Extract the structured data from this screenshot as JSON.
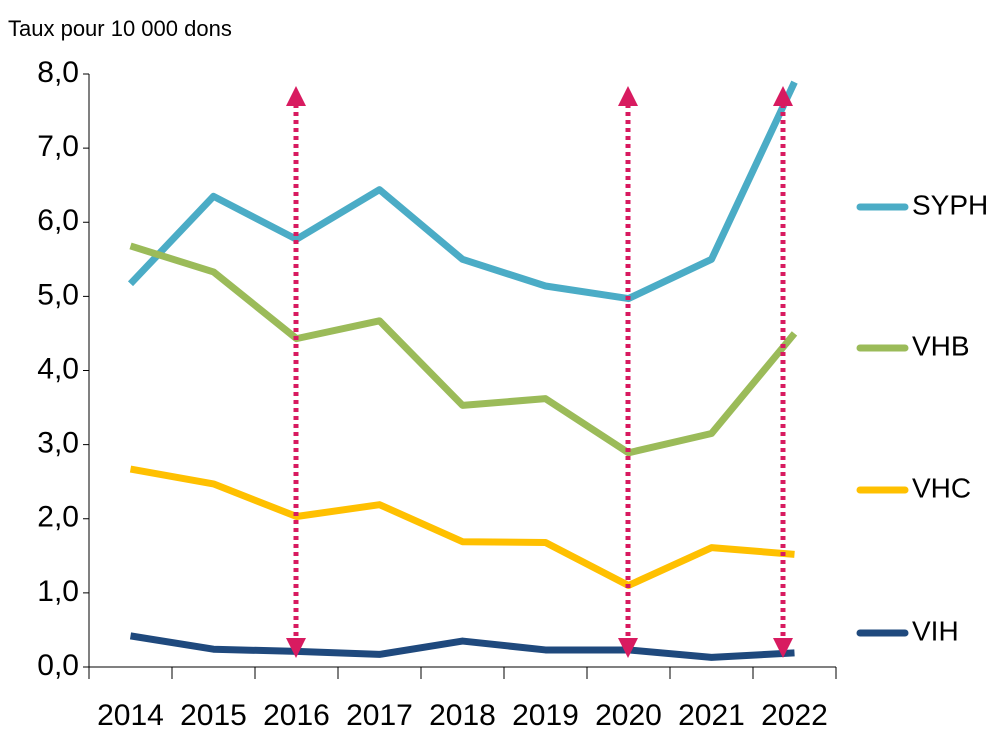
{
  "chart_data": {
    "type": "line",
    "ylabel": "Taux pour 10 000 dons",
    "categories": [
      "2014",
      "2015",
      "2016",
      "2017",
      "2018",
      "2019",
      "2020",
      "2021",
      "2022"
    ],
    "series": [
      {
        "name": "SYPH",
        "color": "#4bacc6",
        "values": [
          5.17,
          6.35,
          5.77,
          6.44,
          5.5,
          5.14,
          4.97,
          5.5,
          7.89
        ]
      },
      {
        "name": "VHB",
        "color": "#9bbb59",
        "values": [
          5.68,
          5.33,
          4.43,
          4.67,
          3.53,
          3.62,
          2.89,
          3.15,
          4.5
        ]
      },
      {
        "name": "VHC",
        "color": "#ffc000",
        "values": [
          2.67,
          2.47,
          2.03,
          2.19,
          1.69,
          1.68,
          1.1,
          1.61,
          1.52
        ]
      },
      {
        "name": "VIH",
        "color": "#1f497d",
        "values": [
          0.42,
          0.24,
          0.21,
          0.17,
          0.35,
          0.23,
          0.23,
          0.13,
          0.19
        ]
      }
    ],
    "ylim": [
      0,
      8
    ],
    "yticks": [
      {
        "value": 0,
        "label": "0,0"
      },
      {
        "value": 1,
        "label": "1,0"
      },
      {
        "value": 2,
        "label": "2,0"
      },
      {
        "value": 3,
        "label": "3,0"
      },
      {
        "value": 4,
        "label": "4,0"
      },
      {
        "value": 5,
        "label": "5,0"
      },
      {
        "value": 6,
        "label": "6,0"
      },
      {
        "value": 7,
        "label": "7,0"
      },
      {
        "value": 8,
        "label": "8,0"
      }
    ],
    "legend": "right",
    "grid": false
  }
}
